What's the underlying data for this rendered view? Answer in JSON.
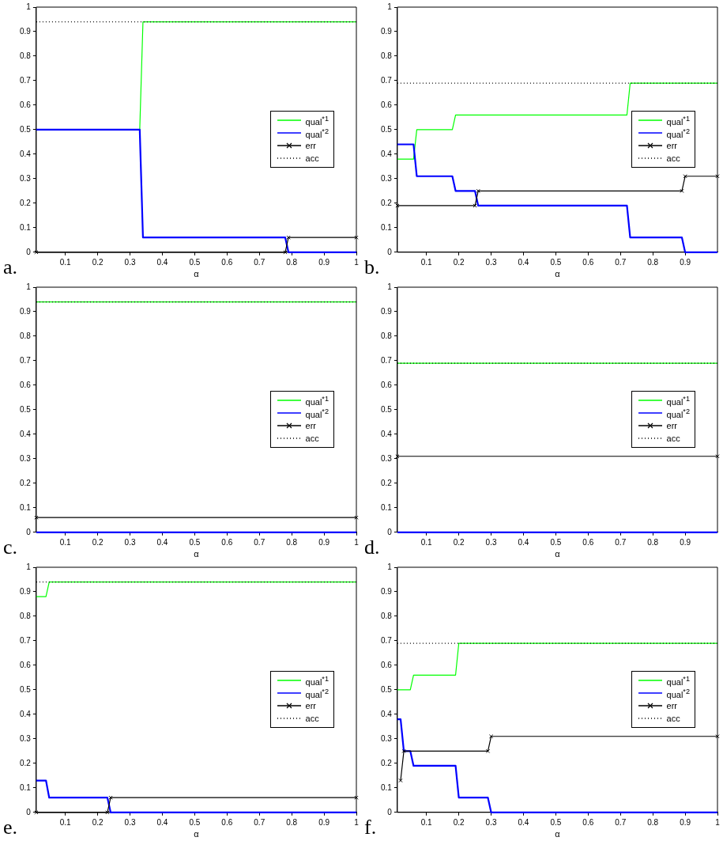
{
  "chart_data": [
    {
      "type": "line",
      "xlabel": "α",
      "annotations": [
        "a."
      ],
      "xlim": [
        0.01,
        1
      ],
      "xticks": [
        0.1,
        0.2,
        0.3,
        0.4,
        0.5,
        0.6,
        0.7,
        0.8,
        0.9,
        1
      ],
      "ylim": [
        0,
        1
      ],
      "yticks": [
        0,
        0.1,
        0.2,
        0.3,
        0.4,
        0.5,
        0.6,
        0.7,
        0.8,
        0.9,
        1
      ],
      "grid": false,
      "legend": "right",
      "series": [
        {
          "name": "qual$^{*1}$",
          "color": "#00ff00",
          "marker": "none",
          "x": [
            0.01,
            0.33,
            0.34,
            1
          ],
          "values": [
            0.5,
            0.5,
            0.94,
            0.94
          ]
        },
        {
          "name": "qual$^{*2}$",
          "color": "#0000ff",
          "marker": "none",
          "x": [
            0.01,
            0.33,
            0.34,
            0.78,
            0.79,
            1
          ],
          "values": [
            0.5,
            0.5,
            0.06,
            0.06,
            0,
            0
          ]
        },
        {
          "name": "err",
          "color": "#000000",
          "marker": "cross",
          "x": [
            0.01,
            0.78,
            0.79,
            1
          ],
          "values": [
            0,
            0,
            0.06,
            0.06
          ]
        },
        {
          "name": "acc",
          "color": "#000000",
          "marker": "none",
          "line_style": "dotted",
          "x": [
            0.01,
            1
          ],
          "values": [
            0.94,
            0.94
          ]
        }
      ]
    },
    {
      "type": "line",
      "xlabel": "α",
      "annotations": [
        "b."
      ],
      "xlim": [
        0.01,
        1
      ],
      "xticks": [
        0.1,
        0.2,
        0.3,
        0.4,
        0.5,
        0.6,
        0.7,
        0.8,
        0.9
      ],
      "ylim": [
        0,
        1
      ],
      "yticks": [
        0,
        0.1,
        0.2,
        0.3,
        0.4,
        0.5,
        0.6,
        0.7,
        0.8,
        0.9,
        1
      ],
      "grid": false,
      "legend": "right",
      "series": [
        {
          "name": "qual$^{*1}$",
          "color": "#00ff00",
          "marker": "none",
          "x": [
            0.01,
            0.06,
            0.07,
            0.18,
            0.19,
            0.72,
            0.73,
            1
          ],
          "values": [
            0.38,
            0.38,
            0.5,
            0.5,
            0.56,
            0.56,
            0.69,
            0.69
          ]
        },
        {
          "name": "qual$^{*2}$",
          "color": "#0000ff",
          "marker": "none",
          "x": [
            0.01,
            0.06,
            0.07,
            0.18,
            0.19,
            0.25,
            0.26,
            0.72,
            0.73,
            0.89,
            0.9,
            1
          ],
          "values": [
            0.44,
            0.44,
            0.31,
            0.31,
            0.25,
            0.25,
            0.19,
            0.19,
            0.06,
            0.06,
            0,
            0
          ]
        },
        {
          "name": "err",
          "color": "#000000",
          "marker": "cross",
          "x": [
            0.01,
            0.25,
            0.26,
            0.89,
            0.9,
            1
          ],
          "values": [
            0.19,
            0.19,
            0.25,
            0.25,
            0.31,
            0.31
          ]
        },
        {
          "name": "acc",
          "color": "#000000",
          "marker": "none",
          "line_style": "dotted",
          "x": [
            0.01,
            1
          ],
          "values": [
            0.69,
            0.69
          ]
        }
      ]
    },
    {
      "type": "line",
      "xlabel": "α",
      "annotations": [
        "c."
      ],
      "xlim": [
        0.01,
        1
      ],
      "xticks": [
        0.1,
        0.2,
        0.3,
        0.4,
        0.5,
        0.6,
        0.7,
        0.8,
        0.9,
        1
      ],
      "ylim": [
        0,
        1
      ],
      "yticks": [
        0,
        0.1,
        0.2,
        0.3,
        0.4,
        0.5,
        0.6,
        0.7,
        0.8,
        0.9,
        1
      ],
      "grid": false,
      "legend": "right",
      "series": [
        {
          "name": "qual$^{*1}$",
          "color": "#00ff00",
          "marker": "none",
          "x": [
            0.01,
            1
          ],
          "values": [
            0.94,
            0.94
          ]
        },
        {
          "name": "qual$^{*2}$",
          "color": "#0000ff",
          "marker": "none",
          "x": [
            0.01,
            1
          ],
          "values": [
            0,
            0
          ]
        },
        {
          "name": "err",
          "color": "#000000",
          "marker": "cross",
          "x": [
            0.01,
            1
          ],
          "values": [
            0.06,
            0.06
          ]
        },
        {
          "name": "acc",
          "color": "#000000",
          "marker": "none",
          "line_style": "dotted",
          "x": [
            0.01,
            1
          ],
          "values": [
            0.94,
            0.94
          ]
        }
      ]
    },
    {
      "type": "line",
      "xlabel": "α",
      "annotations": [
        "d."
      ],
      "xlim": [
        0.01,
        1
      ],
      "xticks": [
        0.1,
        0.2,
        0.3,
        0.4,
        0.5,
        0.6,
        0.7,
        0.8,
        0.9
      ],
      "ylim": [
        0,
        1
      ],
      "yticks": [
        0,
        0.1,
        0.2,
        0.3,
        0.4,
        0.5,
        0.6,
        0.7,
        0.8,
        0.9,
        1
      ],
      "grid": false,
      "legend": "right",
      "series": [
        {
          "name": "qual$^{*1}$",
          "color": "#00ff00",
          "marker": "none",
          "x": [
            0.01,
            1
          ],
          "values": [
            0.69,
            0.69
          ]
        },
        {
          "name": "qual$^{*2}$",
          "color": "#0000ff",
          "marker": "none",
          "x": [
            0.01,
            1
          ],
          "values": [
            0,
            0
          ]
        },
        {
          "name": "err",
          "color": "#000000",
          "marker": "cross",
          "x": [
            0.01,
            1
          ],
          "values": [
            0.31,
            0.31
          ]
        },
        {
          "name": "acc",
          "color": "#000000",
          "marker": "none",
          "line_style": "dotted",
          "x": [
            0.01,
            1
          ],
          "values": [
            0.69,
            0.69
          ]
        }
      ]
    },
    {
      "type": "line",
      "xlabel": "α",
      "annotations": [
        "e."
      ],
      "xlim": [
        0.01,
        1
      ],
      "xticks": [
        0.1,
        0.2,
        0.3,
        0.4,
        0.5,
        0.6,
        0.7,
        0.8,
        0.9,
        1
      ],
      "ylim": [
        0,
        1
      ],
      "yticks": [
        0,
        0.1,
        0.2,
        0.3,
        0.4,
        0.5,
        0.6,
        0.7,
        0.8,
        0.9,
        1
      ],
      "grid": false,
      "legend": "right",
      "series": [
        {
          "name": "qual$^{*1}$",
          "color": "#00ff00",
          "marker": "none",
          "x": [
            0.01,
            0.04,
            0.05,
            1
          ],
          "values": [
            0.88,
            0.88,
            0.94,
            0.94
          ]
        },
        {
          "name": "qual$^{*2}$",
          "color": "#0000ff",
          "marker": "none",
          "x": [
            0.01,
            0.04,
            0.05,
            0.23,
            0.24,
            1
          ],
          "values": [
            0.13,
            0.13,
            0.06,
            0.06,
            0,
            0
          ]
        },
        {
          "name": "err",
          "color": "#000000",
          "marker": "cross",
          "x": [
            0.01,
            0.23,
            0.24,
            1
          ],
          "values": [
            0,
            0,
            0.06,
            0.06
          ]
        },
        {
          "name": "acc",
          "color": "#000000",
          "marker": "none",
          "line_style": "dotted",
          "x": [
            0.01,
            1
          ],
          "values": [
            0.94,
            0.94
          ]
        }
      ]
    },
    {
      "type": "line",
      "xlabel": "α",
      "annotations": [
        "f."
      ],
      "xlim": [
        0.01,
        1
      ],
      "xticks": [
        0.1,
        0.2,
        0.3,
        0.4,
        0.5,
        0.6,
        0.7,
        0.8,
        0.9,
        1
      ],
      "ylim": [
        0,
        1
      ],
      "yticks": [
        0,
        0.1,
        0.2,
        0.3,
        0.4,
        0.5,
        0.6,
        0.7,
        0.8,
        0.9,
        1
      ],
      "grid": false,
      "legend": "right",
      "series": [
        {
          "name": "qual$^{*1}$",
          "color": "#00ff00",
          "marker": "none",
          "x": [
            0.01,
            0.05,
            0.06,
            0.19,
            0.2,
            1
          ],
          "values": [
            0.5,
            0.5,
            0.56,
            0.56,
            0.69,
            0.69
          ]
        },
        {
          "name": "qual$^{*2}$",
          "color": "#0000ff",
          "marker": "none",
          "x": [
            0.01,
            0.02,
            0.03,
            0.05,
            0.06,
            0.19,
            0.2,
            0.29,
            0.3,
            1
          ],
          "values": [
            0.38,
            0.38,
            0.25,
            0.25,
            0.19,
            0.19,
            0.06,
            0.06,
            0,
            0
          ]
        },
        {
          "name": "err",
          "color": "#000000",
          "marker": "cross",
          "x": [
            0.02,
            0.03,
            0.29,
            0.3,
            1
          ],
          "values": [
            0.13,
            0.25,
            0.25,
            0.31,
            0.31
          ]
        },
        {
          "name": "acc",
          "color": "#000000",
          "marker": "none",
          "line_style": "dotted",
          "x": [
            0.01,
            1
          ],
          "values": [
            0.69,
            0.69
          ]
        }
      ]
    }
  ]
}
